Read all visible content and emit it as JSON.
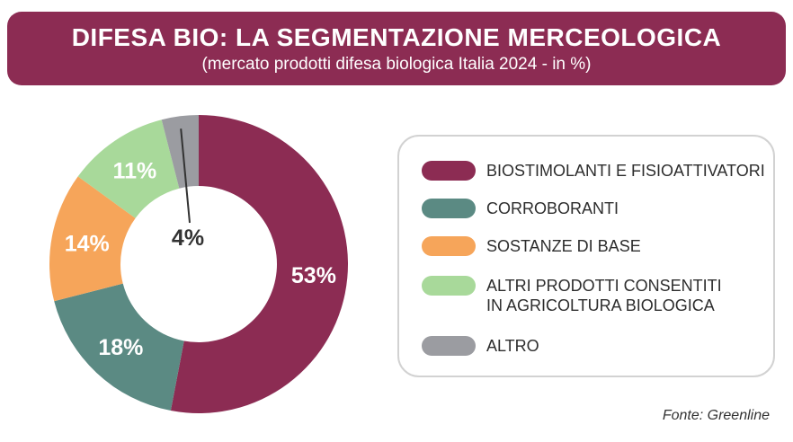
{
  "header": {
    "title": "DIFESA BIO: LA SEGMENTAZIONE MERCEOLOGICA",
    "subtitle": "(mercato prodotti difesa biologica Italia 2024 - in %)"
  },
  "chart_data": {
    "type": "pie",
    "title": "DIFESA BIO: LA SEGMENTAZIONE MERCEOLOGICA",
    "subtitle": "(mercato prodotti difesa biologica Italia 2024 - in %)",
    "unit": "%",
    "categories": [
      "BIOSTIMOLANTI E FISIOATTIVATORI",
      "CORROBORANTI",
      "SOSTANZE DI BASE",
      "ALTRI PRODOTTI CONSENTITI IN AGRICOLTURA BIOLOGICA",
      "ALTRO"
    ],
    "values": [
      53,
      18,
      14,
      11,
      4
    ],
    "data_labels": [
      "53%",
      "18%",
      "14%",
      "11%",
      "4%"
    ],
    "colors": [
      "#8c2c53",
      "#5b8a83",
      "#f6a55a",
      "#a8d99a",
      "#9b9ca1"
    ],
    "donut": true,
    "legend_position": "right"
  },
  "legend": {
    "items": [
      {
        "label": "BIOSTIMOLANTI E FISIOATTIVATORI"
      },
      {
        "label": "CORROBORANTI"
      },
      {
        "label": "SOSTANZE DI BASE"
      },
      {
        "label": "ALTRI PRODOTTI CONSENTITI\nIN AGRICOLTURA BIOLOGICA"
      },
      {
        "label": "ALTRO"
      }
    ]
  },
  "source": "Fonte: Greenline"
}
